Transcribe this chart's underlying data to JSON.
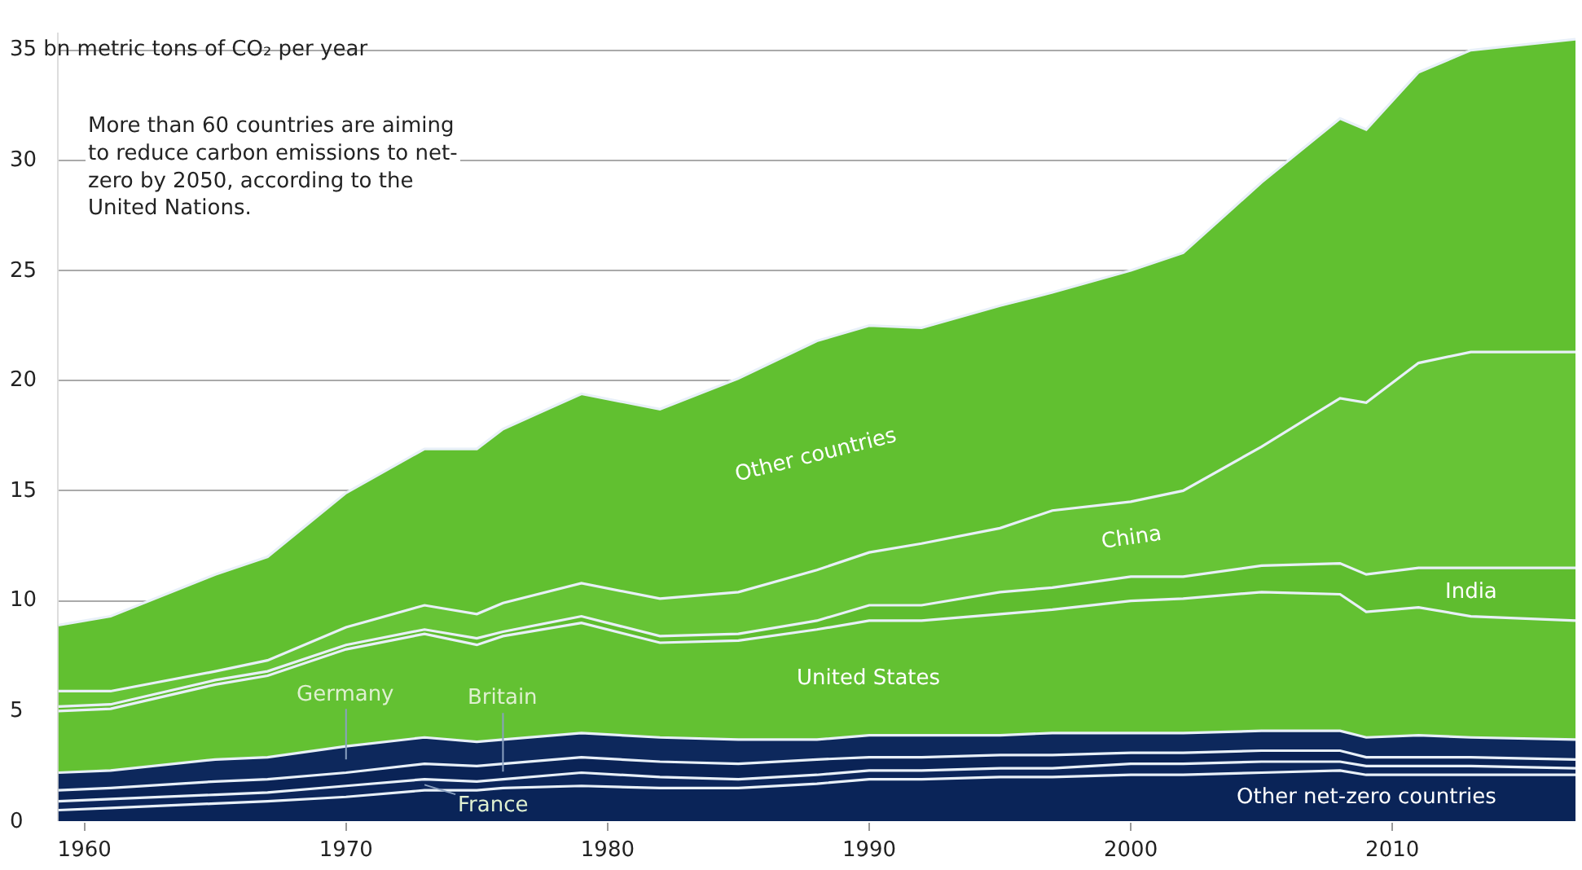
{
  "chart_data": {
    "type": "area",
    "stacked": true,
    "grid": "y",
    "legend": false,
    "x": [
      1959,
      1961,
      1965,
      1967,
      1970,
      1973,
      1975,
      1976,
      1979,
      1982,
      1985,
      1988,
      1990,
      1992,
      1995,
      1997,
      2000,
      2002,
      2005,
      2008,
      2009,
      2011,
      2013,
      2017
    ],
    "xlim": [
      1959,
      2017
    ],
    "xticks": [
      1960,
      1970,
      1980,
      1990,
      2000,
      2010
    ],
    "ylim": [
      0,
      35.8
    ],
    "yticks": [
      0,
      5,
      10,
      15,
      20,
      25,
      30,
      {
        "value": 35,
        "label": "35 bn metric tons of CO₂ per year"
      }
    ],
    "series": [
      {
        "name": "Other net-zero countries",
        "color": "#0a2458",
        "values": [
          0.5,
          0.6,
          0.8,
          0.9,
          1.1,
          1.4,
          1.4,
          1.5,
          1.6,
          1.5,
          1.5,
          1.7,
          1.9,
          1.9,
          2.0,
          2.0,
          2.1,
          2.1,
          2.2,
          2.3,
          2.1,
          2.1,
          2.1,
          2.1
        ]
      },
      {
        "name": "France",
        "color": "#0c265b",
        "values": [
          0.4,
          0.4,
          0.4,
          0.4,
          0.5,
          0.5,
          0.4,
          0.4,
          0.6,
          0.5,
          0.4,
          0.4,
          0.4,
          0.4,
          0.4,
          0.4,
          0.5,
          0.5,
          0.5,
          0.4,
          0.4,
          0.4,
          0.4,
          0.3
        ]
      },
      {
        "name": "Britain",
        "color": "#0a2356",
        "values": [
          0.5,
          0.5,
          0.6,
          0.6,
          0.6,
          0.7,
          0.7,
          0.7,
          0.7,
          0.7,
          0.7,
          0.7,
          0.6,
          0.6,
          0.6,
          0.6,
          0.5,
          0.5,
          0.5,
          0.5,
          0.4,
          0.4,
          0.4,
          0.4
        ]
      },
      {
        "name": "Germany",
        "color": "#0d285c",
        "values": [
          0.8,
          0.8,
          1.0,
          1.0,
          1.2,
          1.2,
          1.1,
          1.1,
          1.1,
          1.1,
          1.1,
          0.9,
          1.0,
          1.0,
          0.9,
          1.0,
          0.9,
          0.9,
          0.9,
          0.9,
          0.9,
          1.0,
          0.9,
          0.9
        ]
      },
      {
        "name": "United States",
        "color": "#63c132",
        "values": [
          2.8,
          2.8,
          3.4,
          3.7,
          4.4,
          4.7,
          4.4,
          4.7,
          5.0,
          4.3,
          4.5,
          5.0,
          5.2,
          5.2,
          5.5,
          5.6,
          6.0,
          6.1,
          6.3,
          6.2,
          5.7,
          5.8,
          5.5,
          5.4
        ]
      },
      {
        "name": "India",
        "color": "#5fbd2f",
        "values": [
          0.2,
          0.2,
          0.2,
          0.2,
          0.2,
          0.2,
          0.3,
          0.2,
          0.3,
          0.3,
          0.3,
          0.4,
          0.7,
          0.7,
          1.0,
          1.0,
          1.1,
          1.0,
          1.2,
          1.4,
          1.7,
          1.8,
          2.2,
          2.4
        ]
      },
      {
        "name": "China",
        "color": "#67c436",
        "values": [
          0.7,
          0.6,
          0.4,
          0.5,
          0.8,
          1.1,
          1.1,
          1.3,
          1.5,
          1.7,
          1.9,
          2.3,
          2.4,
          2.8,
          2.9,
          3.5,
          3.4,
          3.9,
          5.4,
          7.5,
          7.8,
          9.3,
          9.8,
          9.8
        ]
      },
      {
        "name": "Other countries",
        "color": "#61c030",
        "values": [
          3.0,
          3.4,
          4.4,
          4.7,
          6.1,
          7.1,
          7.5,
          7.9,
          8.6,
          8.6,
          9.7,
          10.4,
          10.3,
          9.8,
          10.1,
          9.9,
          10.5,
          10.8,
          12.0,
          12.7,
          12.4,
          13.2,
          13.7,
          14.2
        ]
      }
    ],
    "annotations": [
      "More than 60 countries are aiming to reduce carbon emissions to net-zero by 2050, according to the United Nations."
    ]
  }
}
